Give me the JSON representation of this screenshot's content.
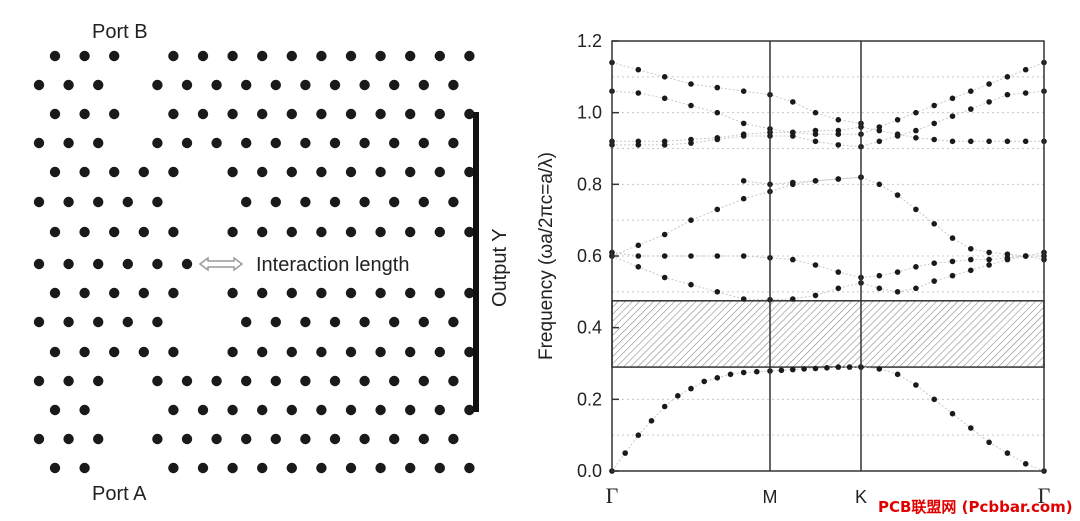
{
  "crystal": {
    "port_b": "Port B",
    "port_a": "Port A",
    "interaction_length": "Interaction length",
    "output_y": "Output Y",
    "colors": {
      "rod": "#1a1a1a",
      "arrow": "#999999",
      "bar": "#111111"
    }
  },
  "chart_data": {
    "type": "scatter",
    "title": "",
    "ylabel": "Frequency (ωa/2πc=a/λ)",
    "xlabel": "",
    "ylim": [
      0,
      1.2
    ],
    "yticks": [
      "0.0",
      "0.2",
      "0.4",
      "0.6",
      "0.8",
      "1.0",
      "1.2"
    ],
    "xticks": [
      "Γ",
      "M",
      "K",
      "Γ"
    ],
    "grid": "dotted horizontal",
    "band_gap": {
      "from": 0.29,
      "to": 0.475
    },
    "series": [
      {
        "values": [
          [
            0,
            0
          ],
          [
            0.05,
            0.05
          ],
          [
            0.1,
            0.1
          ],
          [
            0.15,
            0.14
          ],
          [
            0.2,
            0.18
          ],
          [
            0.25,
            0.21
          ],
          [
            0.3,
            0.23
          ],
          [
            0.35,
            0.25
          ],
          [
            0.4,
            0.26
          ],
          [
            0.45,
            0.27
          ],
          [
            0.5,
            0.275
          ],
          [
            0.55,
            0.277
          ],
          [
            0.6,
            0.279
          ],
          [
            0.65,
            0.281
          ],
          [
            0.7,
            0.283
          ],
          [
            0.75,
            0.285
          ],
          [
            0.8,
            0.286
          ],
          [
            0.85,
            0.288
          ],
          [
            0.9,
            0.29
          ],
          [
            0.95,
            0.29
          ],
          [
            1,
            0.29
          ],
          [
            1.1,
            0.285
          ],
          [
            1.2,
            0.27
          ],
          [
            1.3,
            0.24
          ],
          [
            1.4,
            0.2
          ],
          [
            1.5,
            0.16
          ],
          [
            1.6,
            0.12
          ],
          [
            1.7,
            0.08
          ],
          [
            1.8,
            0.05
          ],
          [
            1.9,
            0.02
          ],
          [
            2,
            0
          ]
        ]
      },
      {
        "values": [
          [
            0,
            0.6
          ],
          [
            0.1,
            0.57
          ],
          [
            0.2,
            0.54
          ],
          [
            0.3,
            0.52
          ],
          [
            0.4,
            0.5
          ],
          [
            0.5,
            0.48
          ],
          [
            0.6,
            0.478
          ],
          [
            0.7,
            0.48
          ],
          [
            0.8,
            0.49
          ],
          [
            0.9,
            0.51
          ],
          [
            1,
            0.525
          ],
          [
            1.1,
            0.51
          ],
          [
            1.2,
            0.5
          ],
          [
            1.3,
            0.51
          ],
          [
            1.4,
            0.53
          ],
          [
            1.5,
            0.545
          ],
          [
            1.6,
            0.56
          ],
          [
            1.7,
            0.575
          ],
          [
            1.8,
            0.59
          ],
          [
            1.9,
            0.6
          ],
          [
            2,
            0.61
          ]
        ]
      },
      {
        "values": [
          [
            0,
            0.61
          ],
          [
            0.1,
            0.6
          ],
          [
            0.2,
            0.6
          ],
          [
            0.3,
            0.6
          ],
          [
            0.4,
            0.6
          ],
          [
            0.5,
            0.6
          ],
          [
            0.6,
            0.595
          ],
          [
            0.7,
            0.59
          ],
          [
            0.8,
            0.575
          ],
          [
            0.9,
            0.555
          ],
          [
            1,
            0.54
          ],
          [
            1.1,
            0.545
          ],
          [
            1.2,
            0.555
          ],
          [
            1.3,
            0.57
          ],
          [
            1.4,
            0.58
          ],
          [
            1.5,
            0.585
          ],
          [
            1.6,
            0.59
          ],
          [
            1.7,
            0.59
          ],
          [
            1.8,
            0.595
          ],
          [
            1.9,
            0.6
          ],
          [
            2,
            0.6
          ]
        ]
      },
      {
        "values": [
          [
            0,
            0.6
          ],
          [
            0.1,
            0.63
          ],
          [
            0.2,
            0.66
          ],
          [
            0.3,
            0.7
          ],
          [
            0.4,
            0.73
          ],
          [
            0.5,
            0.76
          ],
          [
            0.6,
            0.78
          ],
          [
            0.7,
            0.8
          ],
          [
            0.8,
            0.81
          ],
          [
            0.9,
            0.815
          ],
          [
            1,
            0.82
          ],
          [
            1.1,
            0.8
          ],
          [
            1.2,
            0.77
          ],
          [
            1.3,
            0.73
          ],
          [
            1.4,
            0.69
          ],
          [
            1.5,
            0.65
          ],
          [
            1.6,
            0.62
          ],
          [
            1.7,
            0.61
          ],
          [
            1.8,
            0.605
          ],
          [
            1.9,
            0.6
          ],
          [
            2,
            0.59
          ]
        ]
      },
      {
        "values": [
          [
            0.5,
            0.81
          ],
          [
            0.6,
            0.8
          ],
          [
            0.7,
            0.805
          ],
          [
            0.8,
            0.81
          ],
          [
            0.9,
            0.815
          ],
          [
            1,
            0.82
          ]
        ]
      },
      {
        "values": [
          [
            0,
            0.92
          ],
          [
            0.1,
            0.92
          ],
          [
            0.2,
            0.92
          ],
          [
            0.3,
            0.925
          ],
          [
            0.4,
            0.93
          ],
          [
            0.5,
            0.94
          ],
          [
            0.6,
            0.945
          ],
          [
            0.7,
            0.945
          ],
          [
            0.8,
            0.95
          ],
          [
            0.9,
            0.95
          ],
          [
            1,
            0.96
          ],
          [
            1.1,
            0.95
          ],
          [
            1.2,
            0.94
          ],
          [
            1.3,
            0.93
          ],
          [
            1.4,
            0.925
          ],
          [
            1.5,
            0.92
          ],
          [
            1.6,
            0.92
          ],
          [
            1.7,
            0.92
          ],
          [
            1.8,
            0.92
          ],
          [
            1.9,
            0.92
          ],
          [
            2,
            0.92
          ]
        ]
      },
      {
        "values": [
          [
            0,
            0.91
          ],
          [
            0.1,
            0.91
          ],
          [
            0.2,
            0.91
          ],
          [
            0.3,
            0.915
          ],
          [
            0.4,
            0.925
          ],
          [
            0.5,
            0.935
          ],
          [
            0.6,
            0.935
          ],
          [
            0.7,
            0.935
          ],
          [
            0.8,
            0.92
          ],
          [
            0.9,
            0.91
          ],
          [
            1,
            0.905
          ],
          [
            1.1,
            0.92
          ],
          [
            1.2,
            0.935
          ],
          [
            1.3,
            0.95
          ],
          [
            1.4,
            0.97
          ],
          [
            1.5,
            0.99
          ],
          [
            1.6,
            1.01
          ],
          [
            1.7,
            1.03
          ],
          [
            1.8,
            1.05
          ],
          [
            1.9,
            1.055
          ],
          [
            2,
            1.06
          ]
        ]
      },
      {
        "values": [
          [
            0,
            1.06
          ],
          [
            0.1,
            1.055
          ],
          [
            0.2,
            1.04
          ],
          [
            0.3,
            1.02
          ],
          [
            0.4,
            1.0
          ],
          [
            0.5,
            0.97
          ],
          [
            0.6,
            0.955
          ],
          [
            0.7,
            0.945
          ],
          [
            0.8,
            0.94
          ],
          [
            0.9,
            0.94
          ],
          [
            1,
            0.94
          ],
          [
            1.1,
            0.96
          ],
          [
            1.2,
            0.98
          ],
          [
            1.3,
            1.0
          ],
          [
            1.4,
            1.02
          ],
          [
            1.5,
            1.04
          ],
          [
            1.6,
            1.06
          ],
          [
            1.7,
            1.08
          ],
          [
            1.8,
            1.1
          ],
          [
            1.9,
            1.12
          ],
          [
            2,
            1.14
          ]
        ]
      },
      {
        "values": [
          [
            0,
            1.14
          ],
          [
            0.1,
            1.12
          ],
          [
            0.2,
            1.1
          ],
          [
            0.3,
            1.08
          ],
          [
            0.4,
            1.07
          ],
          [
            0.5,
            1.06
          ],
          [
            0.6,
            1.05
          ],
          [
            0.7,
            1.03
          ],
          [
            0.8,
            1.0
          ],
          [
            0.9,
            0.98
          ],
          [
            1,
            0.97
          ]
        ]
      }
    ]
  },
  "watermark": "PCB联盟网 (Pcbbar.com)"
}
